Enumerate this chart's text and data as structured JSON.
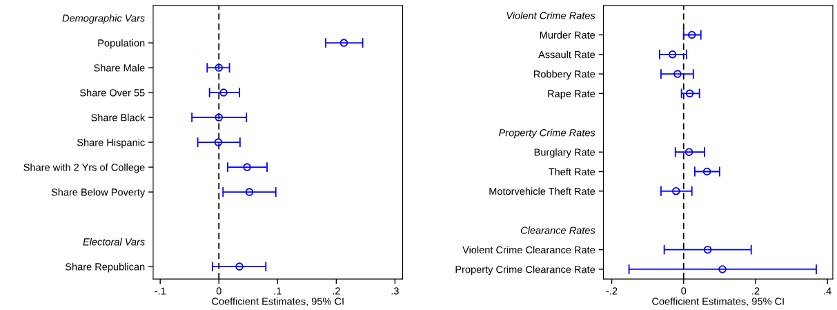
{
  "chart_data": [
    {
      "type": "scatter",
      "orientation": "horizontal",
      "xlabel": "Coefficient Estimates, 95% CI",
      "marker": "circle",
      "color": "#0000ff",
      "grid": false,
      "categories": [
        "Demographic Vars",
        "Population",
        "Share Male",
        "Share Over 55",
        "Share Black",
        "Share Hispanic",
        "Share with 2 Yrs of College",
        "Share Below Poverty",
        null,
        "Electoral Vars",
        "Share Republican"
      ],
      "values": [
        null,
        0.213,
        0.0,
        0.008,
        0.0,
        -0.001,
        0.048,
        0.052,
        null,
        null,
        0.035
      ],
      "errors": [
        null,
        [
          0.182,
          0.245
        ],
        [
          -0.02,
          0.018
        ],
        [
          -0.016,
          0.035
        ],
        [
          -0.046,
          0.047
        ],
        [
          -0.036,
          0.036
        ],
        [
          0.015,
          0.082
        ],
        [
          0.007,
          0.097
        ],
        null,
        null,
        [
          -0.011,
          0.08
        ]
      ],
      "xlim": [
        -0.112,
        0.313
      ],
      "xticks": [
        {
          "value": -0.1,
          "label": "-.1"
        },
        0,
        {
          "value": 0.1,
          "label": ".1"
        },
        {
          "value": 0.2,
          "label": ".2"
        },
        {
          "value": 0.3,
          "label": ".3"
        }
      ],
      "ref_lines": [
        {
          "axis": "x",
          "value": 0,
          "color": "#000000",
          "line_style": "dashed"
        }
      ]
    },
    {
      "type": "scatter",
      "orientation": "horizontal",
      "xlabel": "Coefficient Estimates, 95% CI",
      "marker": "circle",
      "color": "#0000ff",
      "grid": false,
      "categories": [
        "Violent Crime Rates",
        "Murder Rate",
        "Assault Rate",
        "Robbery Rate",
        "Rape Rate",
        null,
        "Property Crime Rates",
        "Burglary Rate",
        "Theft Rate",
        "Motorvehicle Theft Rate",
        null,
        "Clearance Rates",
        "Violent Crime Clearance Rate",
        "Property Crime Clearance Rate"
      ],
      "values": [
        null,
        0.023,
        -0.031,
        -0.017,
        0.017,
        null,
        null,
        0.015,
        0.065,
        -0.021,
        null,
        null,
        0.067,
        0.108
      ],
      "errors": [
        null,
        [
          0.0,
          0.048
        ],
        [
          -0.067,
          0.008
        ],
        [
          -0.063,
          0.027
        ],
        [
          -0.006,
          0.044
        ],
        null,
        null,
        [
          -0.023,
          0.058
        ],
        [
          0.031,
          0.1
        ],
        [
          -0.063,
          0.023
        ],
        null,
        null,
        [
          -0.054,
          0.188
        ],
        [
          -0.152,
          0.369
        ]
      ],
      "xlim": [
        -0.223,
        0.415
      ],
      "xticks": [
        {
          "value": -0.2,
          "label": "-.2"
        },
        0,
        {
          "value": 0.2,
          "label": ".2"
        },
        {
          "value": 0.4,
          "label": ".4"
        }
      ],
      "ref_lines": [
        {
          "axis": "x",
          "value": 0,
          "color": "#000000",
          "line_style": "dashed"
        }
      ]
    }
  ]
}
